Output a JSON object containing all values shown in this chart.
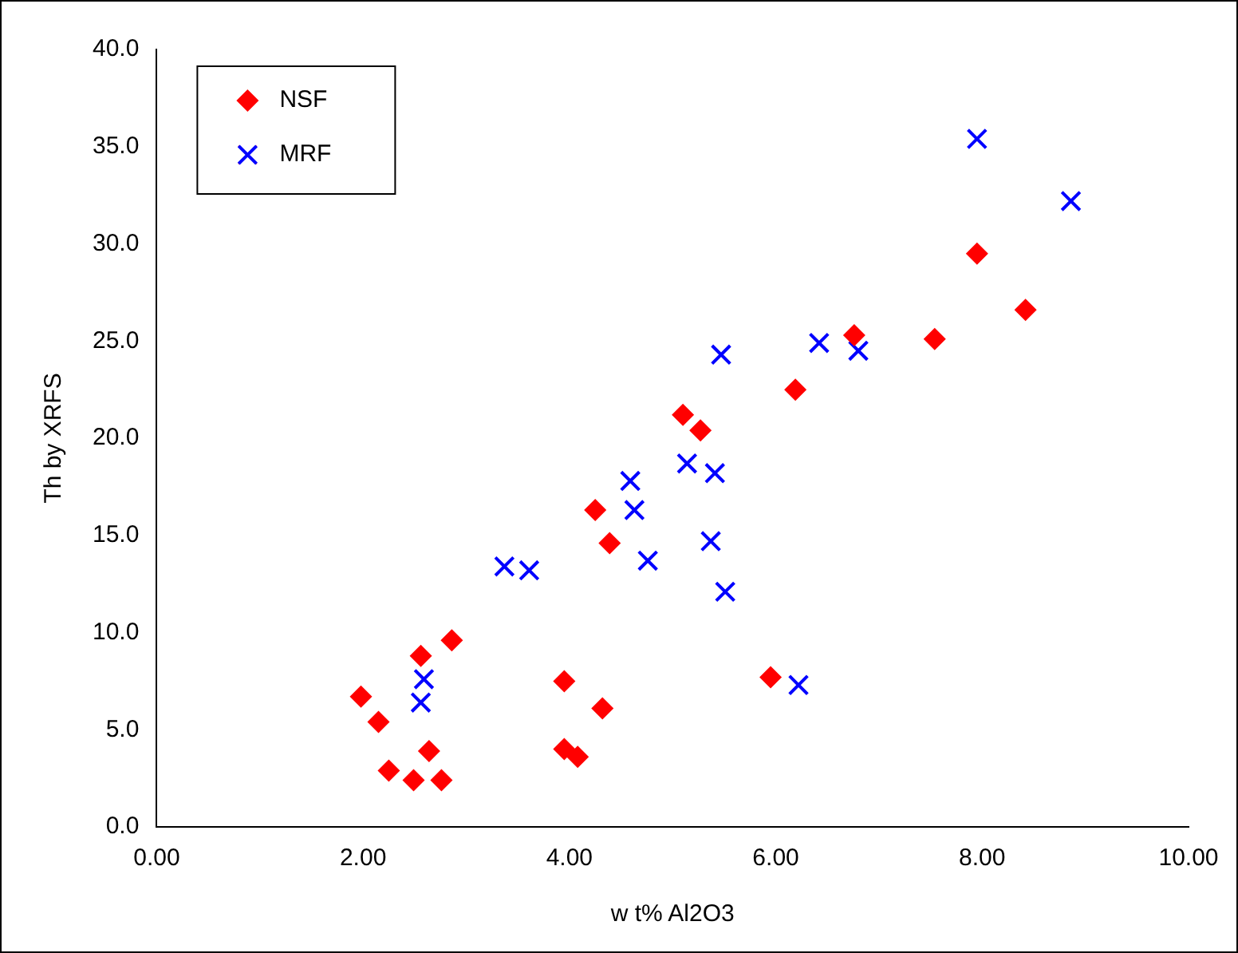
{
  "chart_data": {
    "type": "scatter",
    "xlabel": "w t% Al2O3",
    "ylabel": "Th by XRFS",
    "legend": "top left",
    "grid": false,
    "xlim": [
      0,
      10
    ],
    "xticks": [
      {
        "value": 0,
        "label": "0.00"
      },
      {
        "value": 2,
        "label": "2.00"
      },
      {
        "value": 4,
        "label": "4.00"
      },
      {
        "value": 6,
        "label": "6.00"
      },
      {
        "value": 8,
        "label": "8.00"
      },
      {
        "value": 10,
        "label": "10.00"
      }
    ],
    "ylim": [
      0,
      40
    ],
    "yticks": [
      {
        "value": 0,
        "label": "0.0"
      },
      {
        "value": 5,
        "label": "5.0"
      },
      {
        "value": 10,
        "label": "10.0"
      },
      {
        "value": 15,
        "label": "15.0"
      },
      {
        "value": 20,
        "label": "20.0"
      },
      {
        "value": 25,
        "label": "25.0"
      },
      {
        "value": 30,
        "label": "30.0"
      },
      {
        "value": 35,
        "label": "35.0"
      },
      {
        "value": 40,
        "label": "40.0"
      }
    ],
    "series": [
      {
        "name": "NSF",
        "color": "#ff0000",
        "marker": "diamond",
        "x": [
          1.98,
          2.15,
          2.25,
          2.49,
          2.56,
          2.64,
          2.76,
          2.86,
          3.95,
          3.95,
          4.08,
          4.32,
          4.25,
          4.39,
          5.1,
          5.27,
          5.95,
          6.19,
          6.76,
          7.54,
          7.95,
          8.42
        ],
        "values": [
          6.7,
          5.4,
          2.9,
          2.4,
          8.8,
          3.9,
          2.4,
          9.6,
          7.5,
          4.0,
          3.6,
          6.1,
          16.3,
          14.6,
          21.2,
          20.4,
          7.7,
          22.5,
          25.3,
          25.1,
          29.5,
          26.6
        ]
      },
      {
        "name": "MRF",
        "color": "#0000ff",
        "marker": "cross",
        "x": [
          2.59,
          2.56,
          3.37,
          3.61,
          4.59,
          4.63,
          4.76,
          5.14,
          5.41,
          5.37,
          5.51,
          5.47,
          6.42,
          6.8,
          6.22,
          7.95,
          8.86
        ],
        "values": [
          7.6,
          6.4,
          13.4,
          13.2,
          17.8,
          16.3,
          13.7,
          18.7,
          18.2,
          14.7,
          12.1,
          24.3,
          24.9,
          24.5,
          7.3,
          35.4,
          32.2
        ]
      }
    ]
  }
}
